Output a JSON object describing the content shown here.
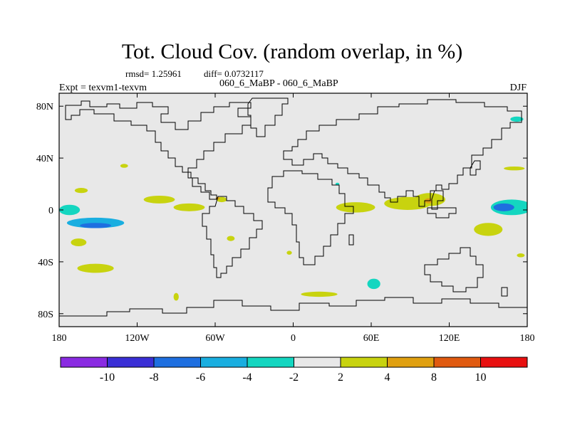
{
  "chart_data": {
    "type": "heatmap",
    "title": "Tot. Cloud Cov. (random overlap, in %)",
    "stats": {
      "rmsd_label": "rmsd= 1.25961",
      "diff_label": "diff= 0.0732117"
    },
    "comparison": "060_6_MaBP - 060_6_MaBP",
    "experiment": "Expt = texvm1-texvm",
    "season": "DJF",
    "x_axis": {
      "range": [
        -180,
        180
      ],
      "ticks": [
        -180,
        -120,
        -60,
        0,
        60,
        120,
        180
      ],
      "tick_labels": [
        "180",
        "120W",
        "60W",
        "0",
        "60E",
        "120E",
        "180"
      ]
    },
    "y_axis": {
      "range": [
        -90,
        90
      ],
      "ticks": [
        80,
        40,
        0,
        -40,
        -80
      ],
      "tick_labels": [
        "80N",
        "40N",
        "0",
        "40S",
        "80S"
      ]
    },
    "colorbar": {
      "levels": [
        -12,
        -10,
        -8,
        -6,
        -4,
        -2,
        2,
        4,
        8,
        10,
        12
      ],
      "labels": [
        "-10",
        "-8",
        "-6",
        "-4",
        "-2",
        "2",
        "4",
        "8",
        "10"
      ],
      "colors": [
        "#8a2be2",
        "#3a2fd6",
        "#1e6fe0",
        "#19aee0",
        "#14d6c0",
        "#e8e8e8",
        "#c8d30f",
        "#e0a010",
        "#e05a10",
        "#e81010"
      ]
    },
    "background_color": "#e8e8e8",
    "anomalies": [
      {
        "lon": -152,
        "lat": -10,
        "rx": 22,
        "ry": 4,
        "value": -5
      },
      {
        "lon": -152,
        "lat": -12,
        "rx": 12,
        "ry": 2,
        "value": -7
      },
      {
        "lon": -172,
        "lat": 0,
        "rx": 8,
        "ry": 4,
        "value": -3
      },
      {
        "lon": -103,
        "lat": 8,
        "rx": 12,
        "ry": 3,
        "value": 3
      },
      {
        "lon": -80,
        "lat": 2,
        "rx": 12,
        "ry": 3,
        "value": 3
      },
      {
        "lon": -55,
        "lat": 8,
        "rx": 4,
        "ry": 2,
        "value": 3
      },
      {
        "lon": -58,
        "lat": 9,
        "rx": 1.5,
        "ry": 1,
        "value": 6
      },
      {
        "lon": -163,
        "lat": 15,
        "rx": 5,
        "ry": 2,
        "value": 3
      },
      {
        "lon": -165,
        "lat": -25,
        "rx": 6,
        "ry": 3,
        "value": 3
      },
      {
        "lon": -152,
        "lat": -45,
        "rx": 14,
        "ry": 3.5,
        "value": 3
      },
      {
        "lon": -130,
        "lat": 34,
        "rx": 3,
        "ry": 1.5,
        "value": 3
      },
      {
        "lon": -48,
        "lat": -22,
        "rx": 3,
        "ry": 2,
        "value": 3
      },
      {
        "lon": 48,
        "lat": 2,
        "rx": 15,
        "ry": 4,
        "value": 3
      },
      {
        "lon": 88,
        "lat": 5,
        "rx": 18,
        "ry": 5,
        "value": 3
      },
      {
        "lon": 105,
        "lat": 8,
        "rx": 12,
        "ry": 5,
        "value": 3
      },
      {
        "lon": 104,
        "lat": 7,
        "rx": 3,
        "ry": 2,
        "value": 6
      },
      {
        "lon": 150,
        "lat": -15,
        "rx": 11,
        "ry": 5,
        "value": 3
      },
      {
        "lon": 168,
        "lat": 2,
        "rx": 16,
        "ry": 6,
        "value": -4
      },
      {
        "lon": 162,
        "lat": 2,
        "rx": 8,
        "ry": 3,
        "value": -7
      },
      {
        "lon": 170,
        "lat": 32,
        "rx": 8,
        "ry": 1.5,
        "value": 3
      },
      {
        "lon": 172,
        "lat": 70,
        "rx": 5,
        "ry": 2,
        "value": -3
      },
      {
        "lon": 20,
        "lat": -65,
        "rx": 14,
        "ry": 2,
        "value": 3
      },
      {
        "lon": 62,
        "lat": -57,
        "rx": 5,
        "ry": 4,
        "value": -4
      },
      {
        "lon": 175,
        "lat": -35,
        "rx": 3,
        "ry": 1.5,
        "value": 3
      },
      {
        "lon": -3,
        "lat": -33,
        "rx": 2,
        "ry": 1.5,
        "value": 3
      },
      {
        "lon": 34,
        "lat": 20,
        "rx": 1.5,
        "ry": 1,
        "value": -3
      },
      {
        "lon": -90,
        "lat": -67,
        "rx": 2,
        "ry": 3,
        "value": 3
      }
    ]
  }
}
